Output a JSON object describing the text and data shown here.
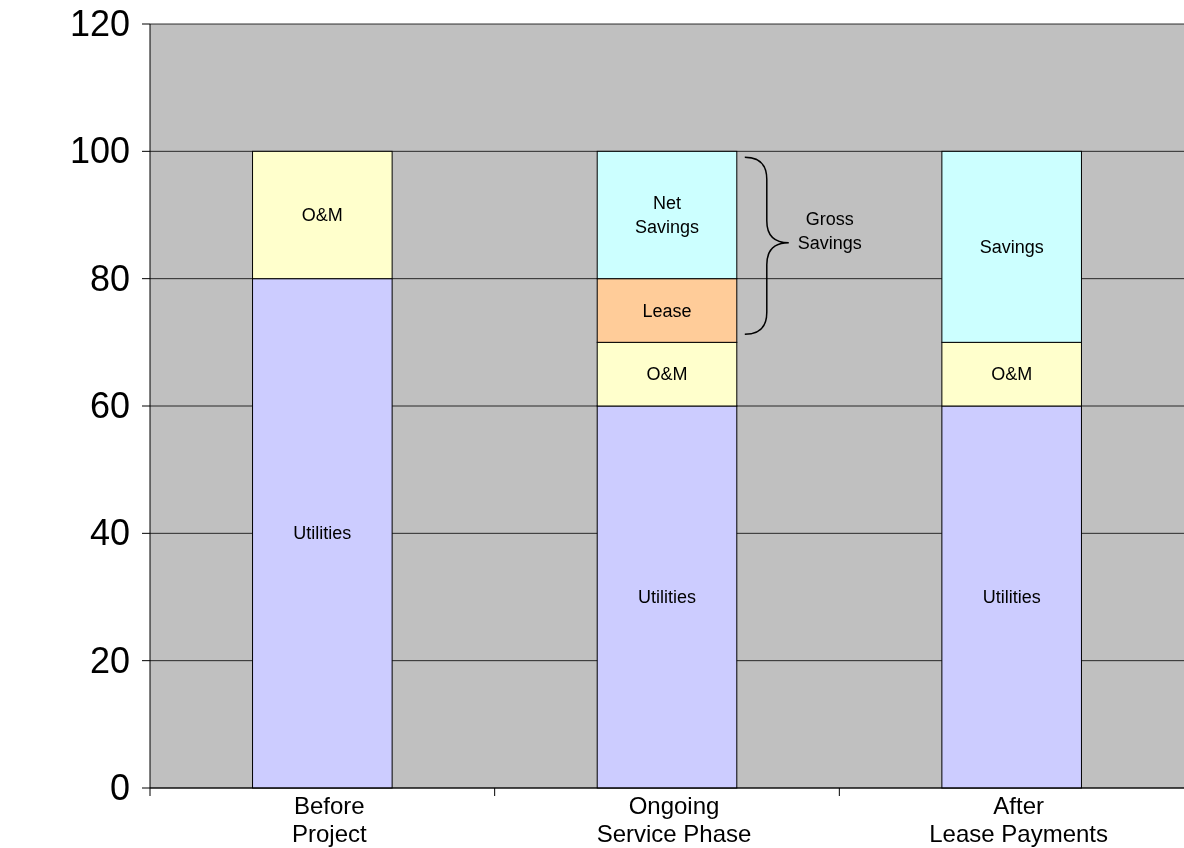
{
  "chart_data": {
    "type": "bar",
    "stacked": true,
    "categories": [
      "Before\nProject",
      "Ongoing\nService Phase",
      "After\nLease Payments"
    ],
    "series": [
      {
        "name": "Utilities",
        "color": "#ccccff",
        "values": [
          80,
          60,
          60
        ]
      },
      {
        "name": "O&M",
        "color": "#ffffcc",
        "values": [
          20,
          10,
          10
        ]
      },
      {
        "name": "Lease",
        "color": "#ffcc99",
        "values": [
          null,
          10,
          null
        ]
      },
      {
        "name": "Net\nSavings",
        "color": "#ccffff",
        "values": [
          null,
          20,
          null
        ]
      },
      {
        "name": "Savings",
        "color": "#ccffff",
        "values": [
          null,
          null,
          30
        ]
      }
    ],
    "ylim": [
      0,
      120
    ],
    "yticks": [
      0,
      20,
      40,
      60,
      80,
      100,
      120
    ],
    "grid": "y",
    "annotations": [
      "Gross\nSavings"
    ]
  }
}
